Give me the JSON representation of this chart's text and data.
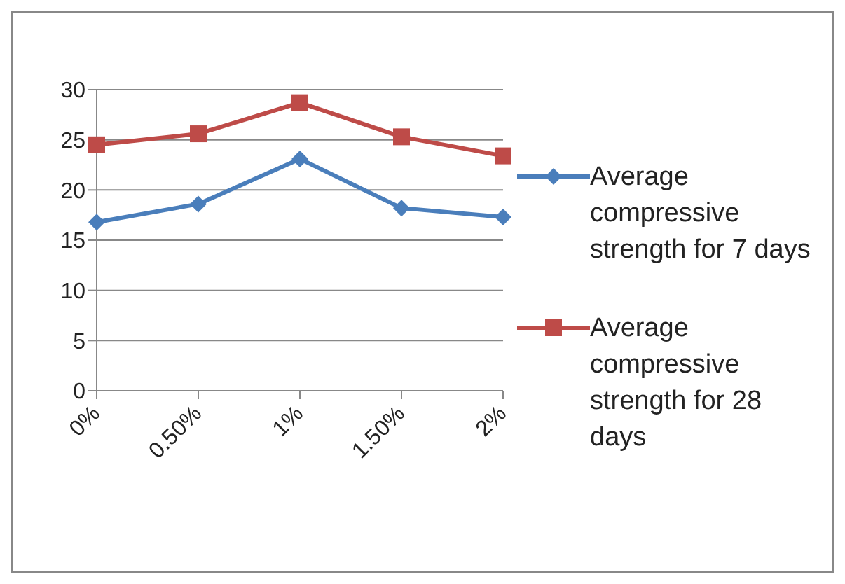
{
  "chart_data": {
    "type": "line",
    "categories": [
      "0%",
      "0.50%",
      "1%",
      "1.50%",
      "2%"
    ],
    "series": [
      {
        "name": "Average compressive strength for 7 days",
        "color": "#4a7ebb",
        "marker": "diamond",
        "values": [
          16.8,
          18.6,
          23.1,
          18.2,
          17.3
        ]
      },
      {
        "name": "Average compressive strength for 28 days",
        "color": "#be4b48",
        "marker": "square",
        "values": [
          24.5,
          25.6,
          28.7,
          25.3,
          23.4
        ]
      }
    ],
    "ylim": [
      0,
      30
    ],
    "yticks": [
      0,
      5,
      10,
      15,
      20,
      25,
      30
    ],
    "grid": "y",
    "legend": "right"
  }
}
